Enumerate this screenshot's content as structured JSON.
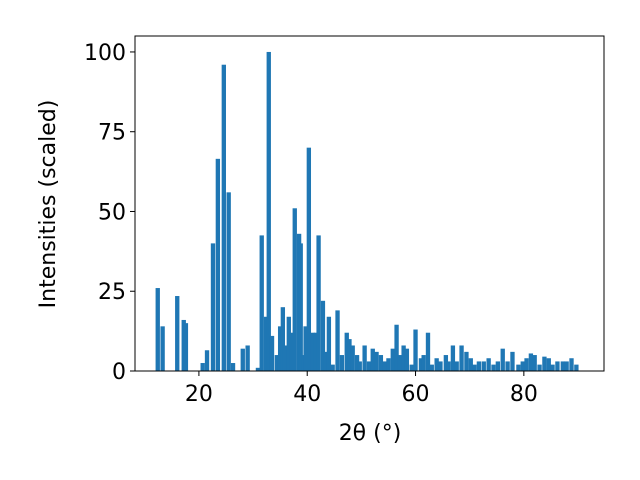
{
  "chart_data": {
    "type": "bar",
    "x_label": "2θ (°)",
    "y_label": "Intensities (scaled)",
    "color": "#1f77b4",
    "x": [
      12.4,
      13.3,
      16,
      17.2,
      17.6,
      20.7,
      21.5,
      22.6,
      23.5,
      24.6,
      25.5,
      26.3,
      28.1,
      29,
      30.9,
      31.6,
      32.4,
      32.9,
      33.5,
      34.4,
      35,
      35.5,
      35.9,
      36.6,
      37.2,
      37.7,
      38.5,
      38.8,
      39.4,
      39.7,
      40.3,
      41,
      41.6,
      42.1,
      42.9,
      43.4,
      44,
      44.7,
      45.6,
      46.4,
      47.3,
      47.8,
      48.4,
      49.2,
      49.7,
      50.6,
      51.4,
      52.1,
      52.8,
      53.6,
      54.3,
      55,
      55.8,
      56.5,
      57.1,
      57.8,
      58.4,
      59.3,
      60,
      61,
      61.5,
      62.3,
      63,
      63.9,
      64.6,
      65.6,
      66.1,
      66.9,
      67.6,
      68.5,
      69.4,
      70.2,
      70.9,
      71.7,
      72.6,
      73.5,
      74.4,
      75.2,
      76.1,
      77,
      77.9,
      79,
      79.8,
      80.5,
      81.3,
      82,
      82.9,
      83.8,
      84.6,
      85.3,
      86.2,
      87.2,
      87.9,
      88.8,
      89.7
    ],
    "values": [
      26,
      14,
      23.5,
      16,
      15,
      2.5,
      6.5,
      40,
      66.5,
      96,
      56,
      2.5,
      7,
      8,
      1,
      42.5,
      17,
      100,
      11,
      5,
      14,
      20,
      8,
      17,
      12,
      51,
      43,
      40,
      5,
      14,
      70,
      12,
      12,
      42.5,
      22,
      6,
      17,
      2,
      19,
      5,
      12,
      10,
      8,
      5,
      3,
      8,
      3,
      7,
      6,
      5,
      3,
      4,
      7,
      14.5,
      5,
      8,
      7,
      2,
      13,
      4,
      5,
      12,
      2,
      4,
      3,
      5,
      3,
      8,
      3,
      8,
      6,
      4,
      2,
      3,
      3,
      4,
      2,
      3,
      7,
      3,
      6,
      2,
      3,
      4,
      5.5,
      5,
      2,
      4.5,
      4,
      2,
      3,
      3,
      3,
      4,
      2
    ],
    "xlim": [
      8.2,
      94.8
    ],
    "ylim": [
      0,
      105
    ],
    "xticks": [
      20,
      40,
      60,
      80
    ],
    "yticks": [
      0,
      25,
      50,
      75,
      100
    ]
  }
}
